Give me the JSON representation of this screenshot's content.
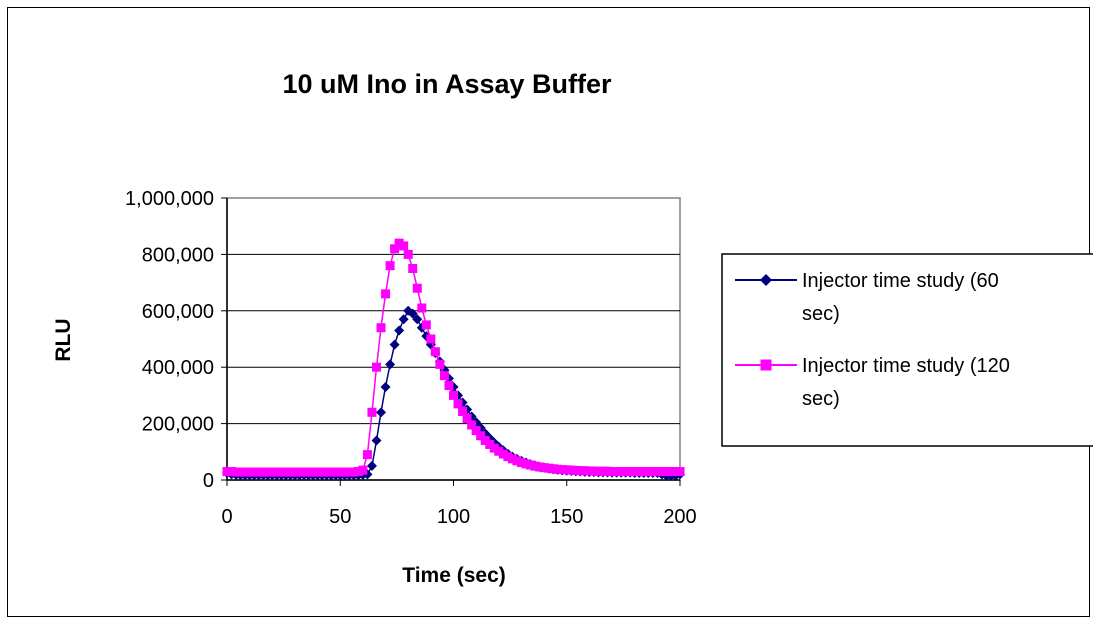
{
  "chart_data": {
    "type": "scatter",
    "title": "10 uM Ino in Assay Buffer",
    "xlabel": "Time (sec)",
    "ylabel": "RLU",
    "xlim": [
      0,
      200
    ],
    "ylim": [
      0,
      1000000
    ],
    "x_ticks": [
      "0",
      "50",
      "100",
      "150",
      "200"
    ],
    "y_ticks": [
      "0",
      "200,000",
      "400,000",
      "600,000",
      "800,000",
      "1,000,000"
    ],
    "grid": "horizontal",
    "legend_position": "right",
    "series": [
      {
        "name": "Injector time study (60 sec)",
        "legend_lines": [
          "Injector time study (60",
          "sec)"
        ],
        "color": "#000080",
        "marker": "diamond",
        "x": [
          0,
          2,
          4,
          6,
          8,
          10,
          12,
          14,
          16,
          18,
          20,
          22,
          24,
          26,
          28,
          30,
          32,
          34,
          36,
          38,
          40,
          42,
          44,
          46,
          48,
          50,
          52,
          54,
          56,
          58,
          60,
          62,
          64,
          66,
          68,
          70,
          72,
          74,
          76,
          78,
          80,
          82,
          84,
          86,
          88,
          90,
          92,
          94,
          96,
          98,
          100,
          102,
          104,
          106,
          108,
          110,
          112,
          114,
          116,
          118,
          120,
          122,
          124,
          126,
          128,
          130,
          132,
          134,
          136,
          138,
          140,
          142,
          144,
          146,
          148,
          150,
          152,
          154,
          156,
          158,
          160,
          162,
          164,
          166,
          168,
          170,
          172,
          174,
          176,
          178,
          180,
          182,
          184,
          186,
          188,
          190,
          192,
          194,
          196,
          198,
          200
        ],
        "y": [
          25000,
          20000,
          18000,
          17000,
          17000,
          17000,
          17000,
          17000,
          17000,
          17000,
          17000,
          17000,
          17000,
          17000,
          17000,
          17000,
          17000,
          17000,
          17000,
          17000,
          17000,
          17000,
          17000,
          17000,
          17000,
          17000,
          17000,
          17000,
          17000,
          17000,
          18000,
          20000,
          50000,
          140000,
          240000,
          330000,
          410000,
          480000,
          530000,
          570000,
          600000,
          590000,
          570000,
          540000,
          510000,
          480000,
          450000,
          420000,
          390000,
          360000,
          330000,
          300000,
          275000,
          250000,
          225000,
          205000,
          185000,
          165000,
          148000,
          132000,
          118000,
          105000,
          93000,
          83000,
          75000,
          68000,
          62000,
          56000,
          51000,
          47000,
          44000,
          41000,
          38000,
          36000,
          34000,
          33000,
          32000,
          31000,
          30000,
          29000,
          28000,
          28000,
          27000,
          27000,
          27000,
          26000,
          26000,
          26000,
          26000,
          26000,
          25000,
          25000,
          25000,
          25000,
          25000,
          25000,
          20000,
          15000,
          15000,
          15000,
          20000
        ]
      },
      {
        "name": "Injector time study (120 sec)",
        "legend_lines": [
          "Injector time study (120",
          "sec)"
        ],
        "color": "#FF00FF",
        "marker": "square",
        "x": [
          0,
          2,
          4,
          6,
          8,
          10,
          12,
          14,
          16,
          18,
          20,
          22,
          24,
          26,
          28,
          30,
          32,
          34,
          36,
          38,
          40,
          42,
          44,
          46,
          48,
          50,
          52,
          54,
          56,
          58,
          60,
          62,
          64,
          66,
          68,
          70,
          72,
          74,
          76,
          78,
          80,
          82,
          84,
          86,
          88,
          90,
          92,
          94,
          96,
          98,
          100,
          102,
          104,
          106,
          108,
          110,
          112,
          114,
          116,
          118,
          120,
          122,
          124,
          126,
          128,
          130,
          132,
          134,
          136,
          138,
          140,
          142,
          144,
          146,
          148,
          150,
          152,
          154,
          156,
          158,
          160,
          162,
          164,
          166,
          168,
          170,
          172,
          174,
          176,
          178,
          180,
          182,
          184,
          186,
          188,
          190,
          192,
          194,
          196,
          198,
          200
        ],
        "y": [
          30000,
          30000,
          28000,
          28000,
          28000,
          28000,
          28000,
          28000,
          28000,
          28000,
          28000,
          28000,
          28000,
          28000,
          28000,
          28000,
          28000,
          28000,
          28000,
          28000,
          28000,
          28000,
          28000,
          28000,
          28000,
          28000,
          28000,
          28000,
          28000,
          30000,
          35000,
          90000,
          240000,
          400000,
          540000,
          660000,
          760000,
          820000,
          840000,
          830000,
          800000,
          750000,
          680000,
          610000,
          550000,
          500000,
          455000,
          410000,
          370000,
          335000,
          300000,
          270000,
          243000,
          218000,
          195000,
          175000,
          157000,
          140000,
          126000,
          113000,
          102000,
          92000,
          83000,
          75000,
          68000,
          62000,
          57000,
          53000,
          49000,
          46000,
          44000,
          42000,
          40000,
          38000,
          37000,
          36000,
          35000,
          34000,
          33000,
          33000,
          32000,
          32000,
          31000,
          31000,
          31000,
          30000,
          30000,
          30000,
          30000,
          30000,
          30000,
          30000,
          30000,
          30000,
          30000,
          30000,
          30000,
          30000,
          30000,
          30000,
          30000
        ]
      }
    ]
  }
}
